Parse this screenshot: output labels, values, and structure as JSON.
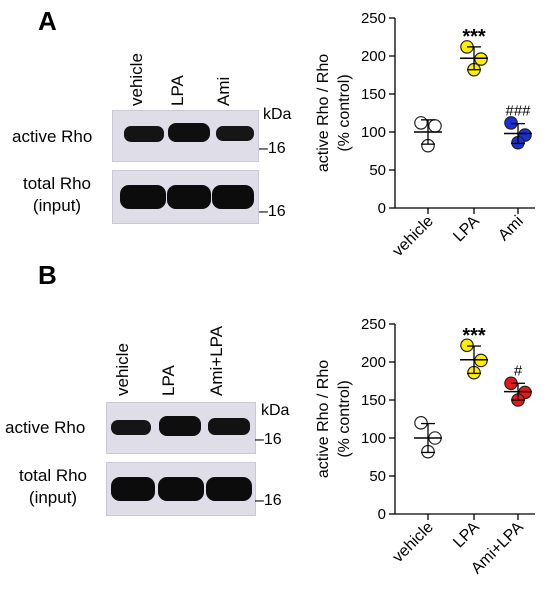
{
  "panels": [
    {
      "letter": "A",
      "blot": {
        "lanes": [
          "vehicle",
          "LPA",
          "Ami"
        ],
        "kda_label": "kDa",
        "rows": [
          {
            "label_lines": [
              "active Rho"
            ],
            "mw_marker": "–16"
          },
          {
            "label_lines": [
              "total Rho",
              "(input)"
            ],
            "mw_marker": "–16"
          }
        ]
      }
    },
    {
      "letter": "B",
      "blot": {
        "lanes": [
          "vehicle",
          "LPA",
          "Ami+LPA"
        ],
        "kda_label": "kDa",
        "rows": [
          {
            "label_lines": [
              "active Rho"
            ],
            "mw_marker": "–16"
          },
          {
            "label_lines": [
              "total Rho",
              "(input)"
            ],
            "mw_marker": "–16"
          }
        ]
      }
    }
  ],
  "chart_data": [
    {
      "type": "scatter",
      "ylabel_lines": [
        "active Rho / Rho",
        "(% control)"
      ],
      "ylim": [
        0,
        250
      ],
      "yticks": [
        0,
        50,
        100,
        150,
        200,
        250
      ],
      "categories": [
        "vehicle",
        "LPA",
        "Ami"
      ],
      "series": [
        {
          "category": "vehicle",
          "points": [
            112,
            108,
            82
          ],
          "mean": 100,
          "sd": 16,
          "color": "#ffffff",
          "annotation": ""
        },
        {
          "category": "LPA",
          "points": [
            212,
            196,
            182
          ],
          "mean": 197,
          "sd": 15,
          "color": "#ffee00",
          "annotation": "***"
        },
        {
          "category": "Ami",
          "points": [
            112,
            96,
            86
          ],
          "mean": 98,
          "sd": 13,
          "color": "#1a2fd6",
          "annotation": "###"
        }
      ]
    },
    {
      "type": "scatter",
      "ylabel_lines": [
        "active Rho / Rho",
        "(% control)"
      ],
      "ylim": [
        0,
        250
      ],
      "yticks": [
        0,
        50,
        100,
        150,
        200,
        250
      ],
      "categories": [
        "vehicle",
        "LPA",
        "Ami+LPA"
      ],
      "series": [
        {
          "category": "vehicle",
          "points": [
            120,
            100,
            82
          ],
          "mean": 100,
          "sd": 19,
          "color": "#ffffff",
          "annotation": ""
        },
        {
          "category": "LPA",
          "points": [
            222,
            202,
            186
          ],
          "mean": 203,
          "sd": 18,
          "color": "#ffee00",
          "annotation": "***"
        },
        {
          "category": "Ami+LPA",
          "points": [
            172,
            160,
            150
          ],
          "mean": 161,
          "sd": 11,
          "color": "#e31a1c",
          "annotation": "#"
        }
      ]
    }
  ]
}
